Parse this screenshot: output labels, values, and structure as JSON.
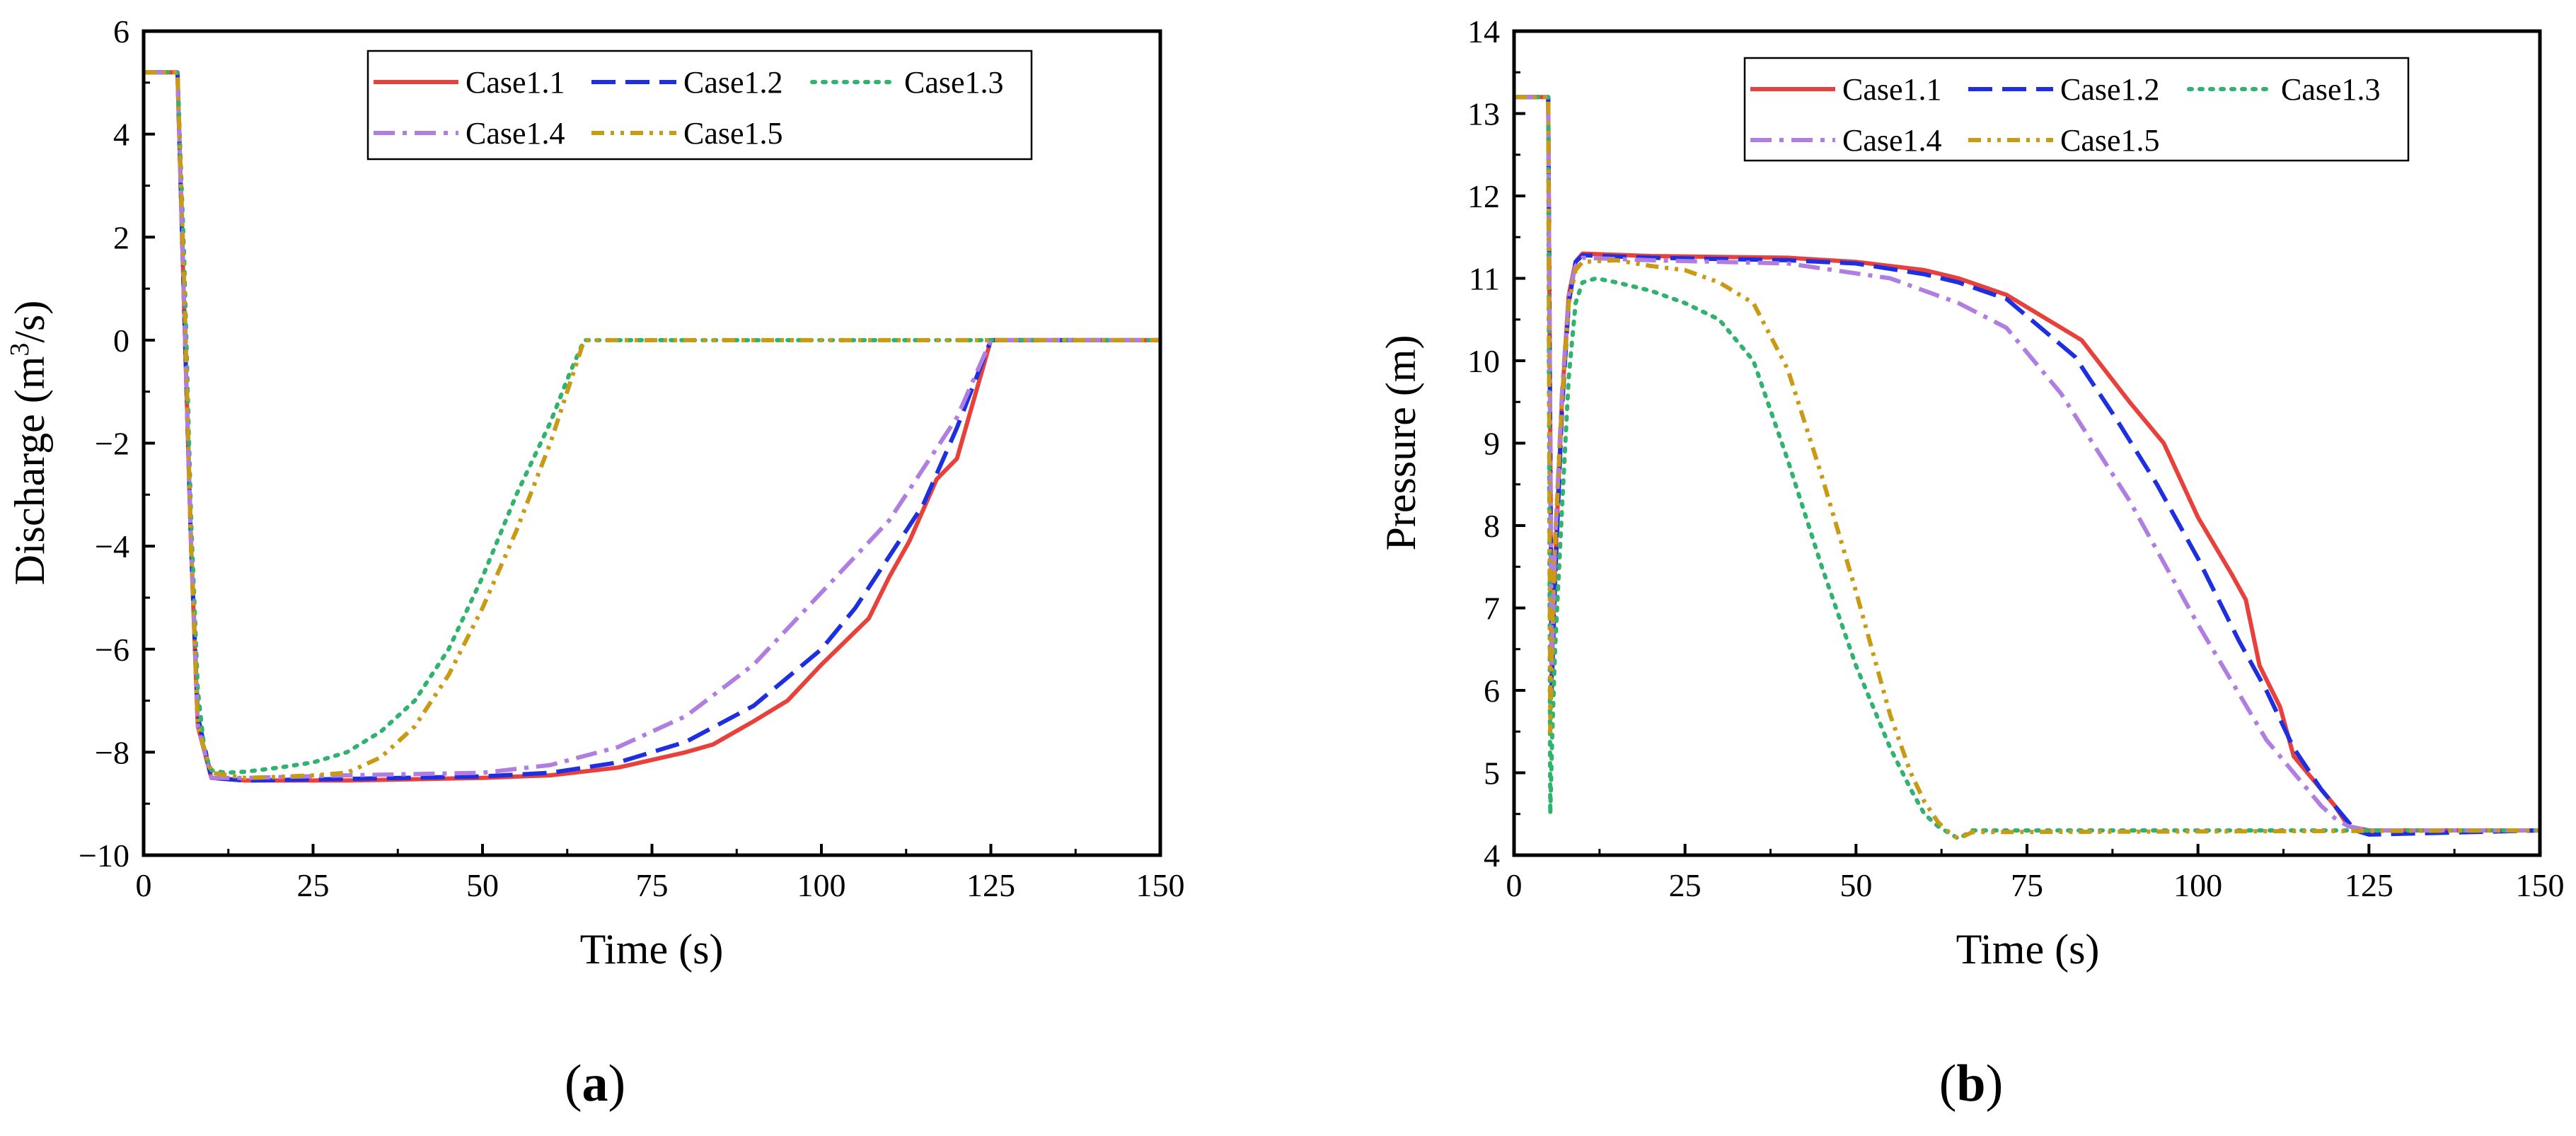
{
  "chart_data": [
    {
      "panel_label": "(a)",
      "panel_letter": "a",
      "type": "line",
      "title": "",
      "xlabel": "Time (s)",
      "ylabel": "Discharge (m³/s)",
      "ylabel_parts": {
        "pre": "Discharge (m",
        "sup": "3",
        "post": "/s)"
      },
      "xlim": [
        0,
        150
      ],
      "ylim": [
        -10,
        6
      ],
      "xticks": [
        0,
        25,
        50,
        75,
        100,
        125,
        150
      ],
      "yticks": [
        -10,
        -8,
        -6,
        -4,
        -2,
        0,
        2,
        4,
        6
      ],
      "legend_position": "top-right",
      "series": [
        {
          "name": "Case1.1",
          "color": "#e8413c",
          "style": "solid",
          "x": [
            0,
            5,
            6,
            7,
            8,
            10,
            15,
            30,
            50,
            60,
            70,
            80,
            84,
            90,
            95,
            100,
            107,
            110,
            113,
            117,
            120,
            125,
            150
          ],
          "y": [
            5.2,
            5.2,
            0.5,
            -4,
            -7.5,
            -8.5,
            -8.55,
            -8.55,
            -8.5,
            -8.45,
            -8.3,
            -8.0,
            -7.85,
            -7.4,
            -7.0,
            -6.3,
            -5.4,
            -4.6,
            -3.9,
            -2.7,
            -2.3,
            0,
            0
          ]
        },
        {
          "name": "Case1.2",
          "color": "#1d2fe0",
          "style": "dash",
          "x": [
            0,
            5,
            6,
            7,
            8,
            10,
            15,
            30,
            50,
            60,
            70,
            80,
            90,
            100,
            105,
            110,
            115,
            120,
            125,
            150
          ],
          "y": [
            5.2,
            5.2,
            0.5,
            -4,
            -7.3,
            -8.5,
            -8.55,
            -8.52,
            -8.47,
            -8.4,
            -8.2,
            -7.8,
            -7.1,
            -6.0,
            -5.2,
            -4.2,
            -3.2,
            -1.7,
            0,
            0
          ]
        },
        {
          "name": "Case1.3",
          "color": "#2fb36f",
          "style": "dot",
          "x": [
            0,
            5,
            6,
            7,
            8,
            9,
            10,
            12,
            15,
            20,
            25,
            30,
            35,
            40,
            45,
            50,
            55,
            60,
            63,
            65,
            70,
            150
          ],
          "y": [
            5.2,
            5.2,
            1.5,
            -3.5,
            -6.8,
            -8.0,
            -8.35,
            -8.4,
            -8.38,
            -8.3,
            -8.2,
            -8.0,
            -7.6,
            -7.0,
            -6.0,
            -4.6,
            -3.0,
            -1.6,
            -0.6,
            0,
            0,
            0
          ]
        },
        {
          "name": "Case1.4",
          "color": "#b07de0",
          "style": "dashdot",
          "x": [
            0,
            5,
            6,
            7,
            8,
            10,
            15,
            30,
            50,
            60,
            70,
            80,
            90,
            100,
            110,
            115,
            120,
            125,
            150
          ],
          "y": [
            5.2,
            5.2,
            0.5,
            -4,
            -7.5,
            -8.5,
            -8.5,
            -8.45,
            -8.4,
            -8.25,
            -7.9,
            -7.3,
            -6.3,
            -4.9,
            -3.5,
            -2.5,
            -1.5,
            0,
            0
          ]
        },
        {
          "name": "Case1.5",
          "color": "#c99a14",
          "style": "dashdotdot",
          "x": [
            0,
            5,
            6,
            7,
            8,
            10,
            15,
            20,
            25,
            30,
            35,
            40,
            45,
            50,
            55,
            60,
            63,
            65,
            70,
            150
          ],
          "y": [
            5.2,
            5.2,
            1,
            -4,
            -7.5,
            -8.4,
            -8.5,
            -8.48,
            -8.45,
            -8.4,
            -8.1,
            -7.5,
            -6.5,
            -5.2,
            -3.7,
            -2.0,
            -0.8,
            0,
            0,
            0
          ]
        }
      ]
    },
    {
      "panel_label": "(b)",
      "panel_letter": "b",
      "type": "line",
      "title": "",
      "xlabel": "Time (s)",
      "ylabel": "Pressure (m)",
      "xlim": [
        0,
        150
      ],
      "ylim": [
        4,
        14
      ],
      "xticks": [
        0,
        25,
        50,
        75,
        100,
        125,
        150
      ],
      "yticks": [
        4,
        5,
        6,
        7,
        8,
        9,
        10,
        11,
        12,
        13,
        14
      ],
      "legend_position": "top-right",
      "series": [
        {
          "name": "Case1.1",
          "color": "#e8413c",
          "style": "solid",
          "x": [
            0,
            5,
            5.5,
            6,
            7,
            8,
            9,
            10,
            20,
            40,
            50,
            60,
            65,
            72,
            83,
            90,
            95,
            100,
            105,
            107,
            109,
            112,
            114,
            116,
            118,
            120,
            122,
            125,
            150
          ],
          "y": [
            13.2,
            13.2,
            6.2,
            7.5,
            9.5,
            10.8,
            11.2,
            11.3,
            11.27,
            11.25,
            11.2,
            11.1,
            11.0,
            10.8,
            10.25,
            9.5,
            9.0,
            8.1,
            7.4,
            7.1,
            6.3,
            5.8,
            5.2,
            5.0,
            4.8,
            4.6,
            4.35,
            4.3,
            4.3
          ]
        },
        {
          "name": "Case1.2",
          "color": "#1d2fe0",
          "style": "dash",
          "x": [
            0,
            5,
            5.5,
            6,
            7,
            8,
            9,
            10,
            20,
            40,
            50,
            60,
            65,
            72,
            82,
            88,
            94,
            100,
            106,
            110,
            114,
            118,
            121,
            123,
            125,
            150
          ],
          "y": [
            13.2,
            13.2,
            6.0,
            7.3,
            9.4,
            10.7,
            11.2,
            11.28,
            11.25,
            11.22,
            11.18,
            11.05,
            10.95,
            10.75,
            10.05,
            9.3,
            8.5,
            7.6,
            6.6,
            6.0,
            5.3,
            4.8,
            4.5,
            4.3,
            4.25,
            4.3
          ]
        },
        {
          "name": "Case1.3",
          "color": "#2fb36f",
          "style": "dot",
          "x": [
            0,
            5,
            5.3,
            5.6,
            6,
            7,
            8,
            9,
            10,
            12,
            15,
            20,
            25,
            30,
            35,
            40,
            45,
            50,
            55,
            58,
            60,
            62,
            64,
            65,
            67,
            150
          ],
          "y": [
            13.2,
            13.2,
            4.5,
            5.5,
            6.5,
            8.2,
            9.8,
            10.7,
            10.95,
            11.0,
            10.95,
            10.85,
            10.7,
            10.5,
            10.0,
            8.8,
            7.5,
            6.3,
            5.3,
            4.8,
            4.5,
            4.35,
            4.25,
            4.2,
            4.3,
            4.3
          ]
        },
        {
          "name": "Case1.4",
          "color": "#b07de0",
          "style": "dashdot",
          "x": [
            0,
            5,
            5.5,
            6,
            7,
            8,
            9,
            10,
            20,
            40,
            55,
            65,
            72,
            80,
            90,
            100,
            110,
            115,
            118,
            120,
            122,
            125,
            150
          ],
          "y": [
            13.2,
            13.2,
            6.3,
            7.8,
            9.6,
            10.8,
            11.15,
            11.25,
            11.22,
            11.18,
            11.0,
            10.7,
            10.4,
            9.6,
            8.3,
            6.8,
            5.4,
            4.9,
            4.6,
            4.45,
            4.35,
            4.3,
            4.3
          ]
        },
        {
          "name": "Case1.5",
          "color": "#c99a14",
          "style": "dashdotdot",
          "x": [
            0,
            5,
            5.3,
            5.6,
            6,
            7,
            8,
            9,
            10,
            15,
            20,
            25,
            30,
            35,
            40,
            45,
            50,
            55,
            58,
            60,
            62,
            64,
            65,
            67,
            150
          ],
          "y": [
            13.2,
            13.2,
            5.5,
            6.8,
            7.8,
            9.5,
            10.7,
            11.1,
            11.2,
            11.22,
            11.15,
            11.1,
            10.95,
            10.7,
            9.9,
            8.6,
            7.2,
            5.7,
            5.0,
            4.65,
            4.4,
            4.25,
            4.2,
            4.28,
            4.3
          ]
        }
      ]
    }
  ]
}
